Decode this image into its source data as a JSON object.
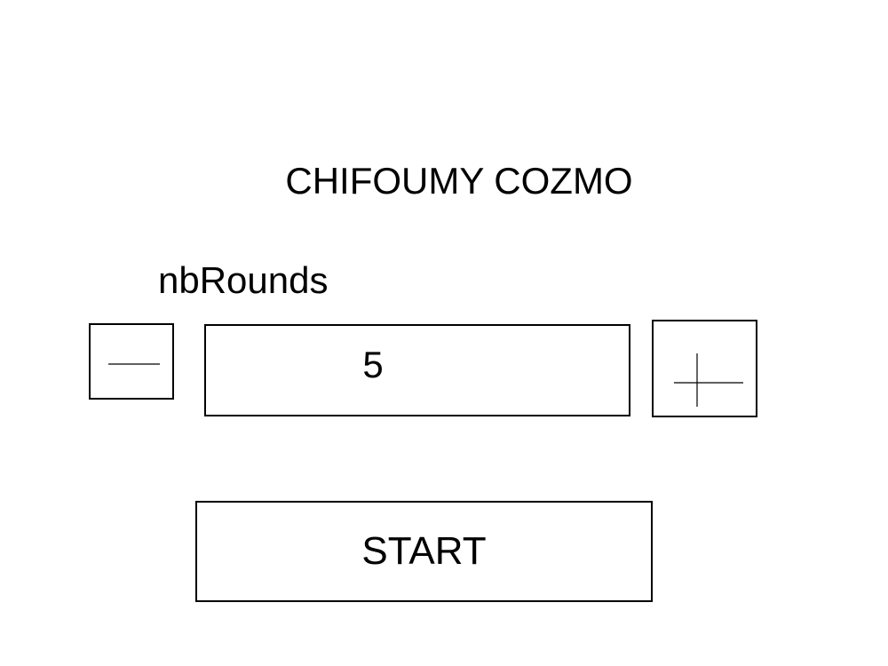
{
  "app": {
    "title": "CHIFOUMY COZMO"
  },
  "settings": {
    "rounds_label": "nbRounds",
    "rounds_value": "5"
  },
  "controls": {
    "decrement_icon": "minus-icon",
    "increment_icon": "plus-icon",
    "start_label": "START"
  },
  "theme": {
    "background": "#ffffff",
    "foreground": "#000000"
  }
}
